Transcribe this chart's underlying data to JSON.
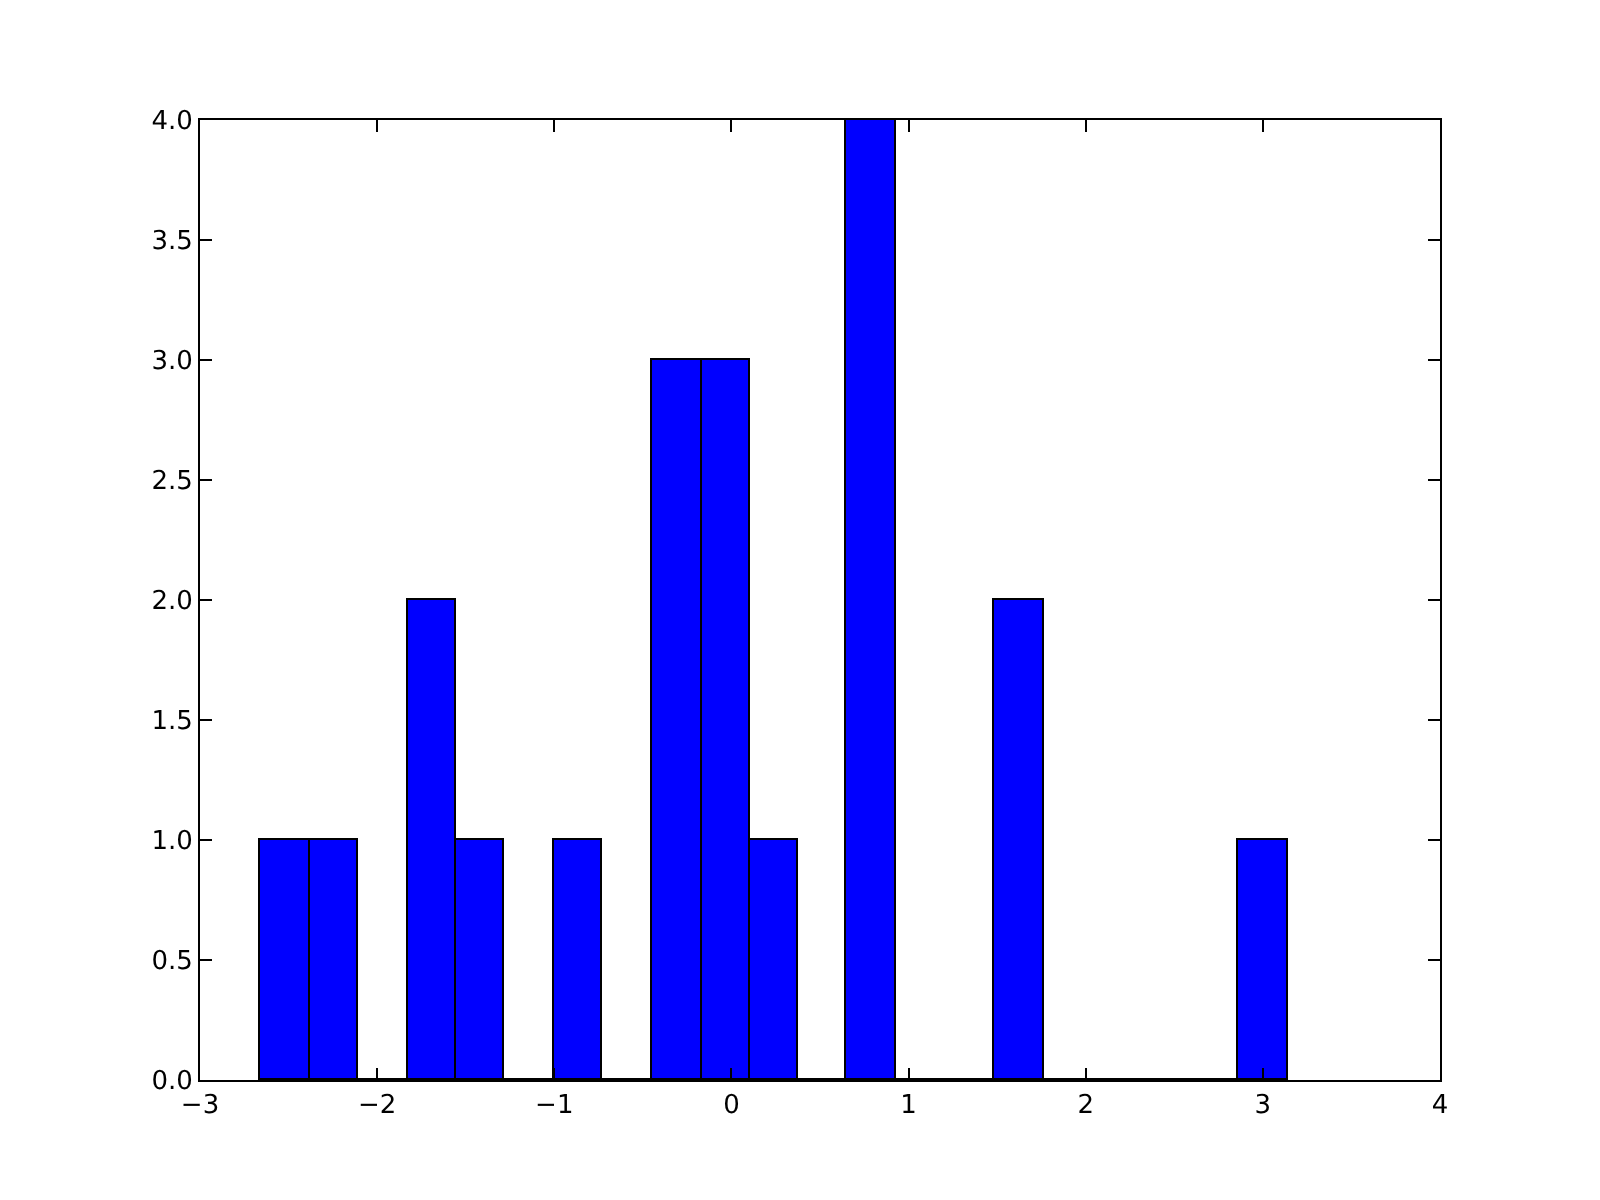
{
  "chart_data": {
    "type": "histogram",
    "bins": [
      -2.66,
      -2.38,
      -2.11,
      -1.83,
      -1.56,
      -1.28,
      -1.0,
      -0.73,
      -0.45,
      -0.17,
      0.1,
      0.38,
      0.65,
      0.93,
      1.48,
      1.76,
      2.86,
      3.14
    ],
    "values": [
      1,
      1,
      0,
      2,
      1,
      0,
      1,
      0,
      3,
      3,
      1,
      0,
      4,
      0,
      2,
      0,
      1
    ],
    "color": "#0000ff",
    "xlim": [
      -3,
      4
    ],
    "xticks": [
      {
        "value": -3,
        "label": "−3"
      },
      {
        "value": -2,
        "label": "−2"
      },
      {
        "value": -1,
        "label": "−1"
      },
      0,
      1,
      2,
      3,
      4
    ],
    "ylim": [
      0,
      4
    ],
    "yticks": [
      {
        "value": 0,
        "label": "0.0"
      },
      {
        "value": 0.5,
        "label": "0.5"
      },
      {
        "value": 1,
        "label": "1.0"
      },
      {
        "value": 1.5,
        "label": "1.5"
      },
      {
        "value": 2,
        "label": "2.0"
      },
      {
        "value": 2.5,
        "label": "2.5"
      },
      {
        "value": 3,
        "label": "3.0"
      },
      {
        "value": 3.5,
        "label": "3.5"
      },
      {
        "value": 4,
        "label": "4.0"
      }
    ]
  }
}
